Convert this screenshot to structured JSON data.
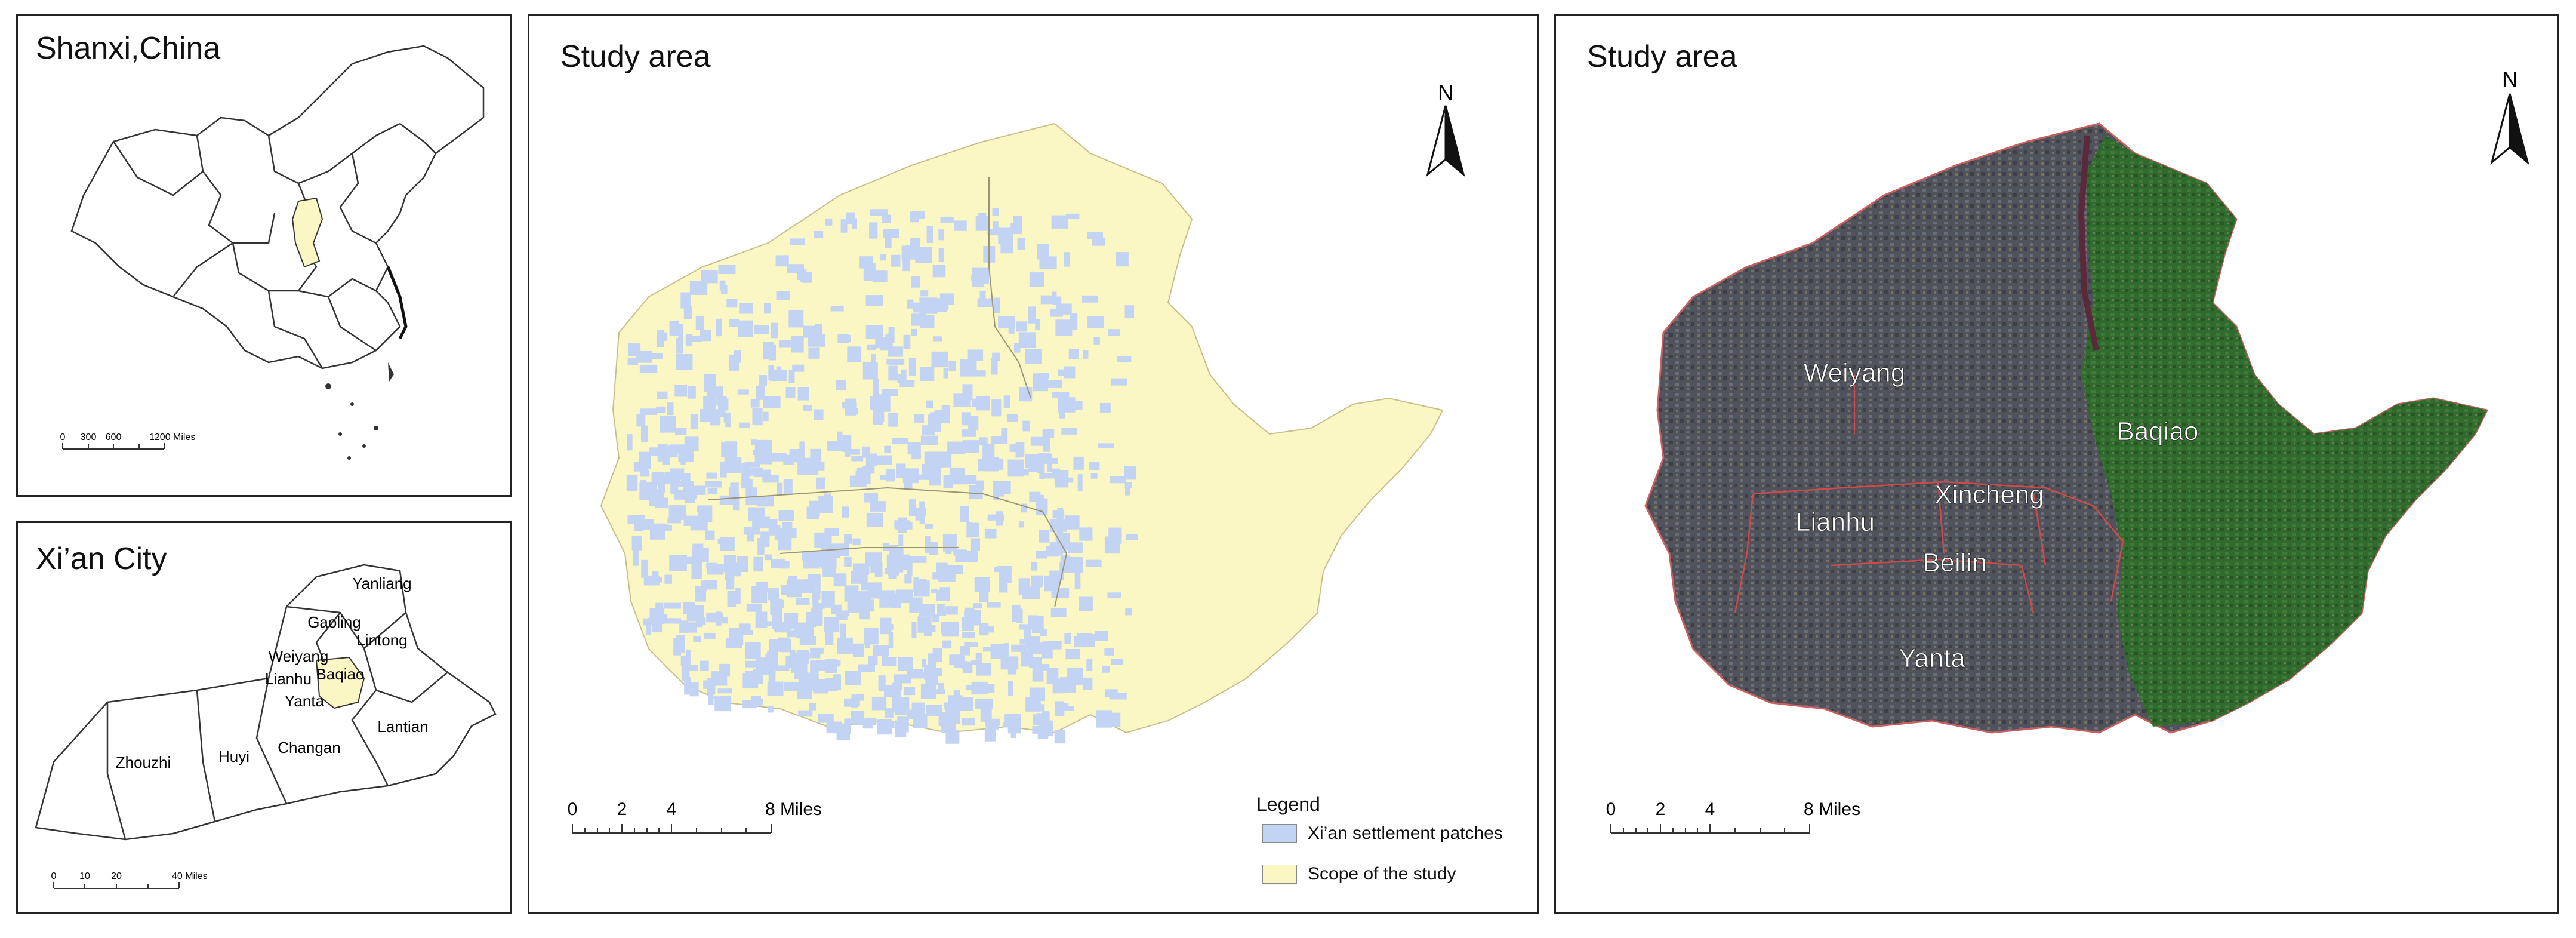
{
  "panels": {
    "china": {
      "title": "Shanxi,China",
      "highlight_color": "#fbf7c4",
      "scale": {
        "ticks": [
          "0",
          "300",
          "600",
          "1200 Miles"
        ]
      }
    },
    "xian": {
      "title": "Xi’an City",
      "highlight_color": "#fbf7c4",
      "districts": [
        "Yanliang",
        "Gaoling",
        "Lintong",
        "Weiyang",
        "Baqiao",
        "Lianhu",
        "Yanta",
        "Lantian",
        "Changan",
        "Huyi",
        "Zhouzhi"
      ],
      "scale": {
        "ticks": [
          "0",
          "10",
          "20",
          "40 Miles"
        ]
      }
    },
    "study_patches": {
      "title": "Study area",
      "north": "N",
      "scale": {
        "ticks": [
          "0",
          "2",
          "4",
          "8 Miles"
        ]
      },
      "legend": {
        "title": "Legend",
        "items": [
          {
            "label": "Xi’an settlement patches",
            "color": "#c3d3f4"
          },
          {
            "label": "Scope of the study",
            "color": "#fbf7c4"
          }
        ]
      }
    },
    "study_satellite": {
      "title": "Study area",
      "north": "N",
      "districts": [
        "Weiyang",
        "Baqiao",
        "Xincheng",
        "Lianhu",
        "Beilin",
        "Yanta"
      ],
      "scale": {
        "ticks": [
          "0",
          "2",
          "4",
          "8 Miles"
        ]
      },
      "colors": {
        "urban": "#4a4d57",
        "vegetation": "#2f6b2c",
        "boundary": "#d04a4a"
      }
    }
  }
}
